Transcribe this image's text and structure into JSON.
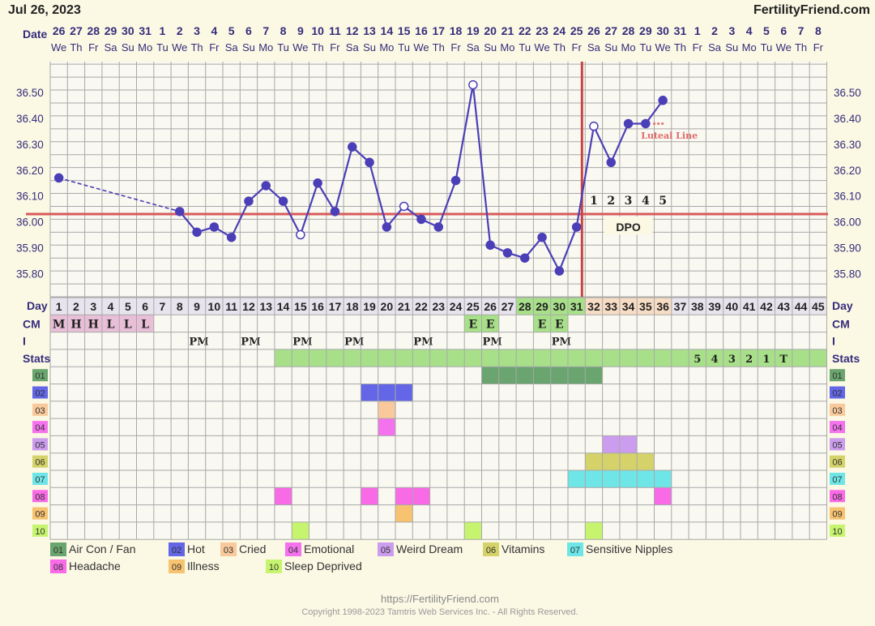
{
  "header": {
    "date": "Jul 26, 2023",
    "brand": "FertilityFriend.com"
  },
  "labels": {
    "date": "Date",
    "day": "Day",
    "cm": "CM",
    "i": "I",
    "stats": "Stats",
    "dpo": "DPO",
    "luteal": "Luteal Line"
  },
  "footer": {
    "url": "https://FertilityFriend.com",
    "copyright": "Copyright 1998-2023 Tamtris Web Services Inc. - All Rights Reserved."
  },
  "colors": {
    "background": "#fbf8e4",
    "chart_bg": "#f9f8f1",
    "grid": "#a8a8a8",
    "line": "#4b3fb7",
    "coverline": "#d85a5a",
    "ovulation": "#c94444",
    "pink": "#e9bfd8",
    "green": "#a8e08a",
    "darkgreen": "#6aa46e"
  },
  "chart_data": {
    "type": "line",
    "ylim": [
      35.71,
      36.62
    ],
    "y_ticks": [
      "36.50",
      "36.40",
      "36.30",
      "36.20",
      "36.10",
      "36.00",
      "35.90",
      "35.80"
    ],
    "dates": [
      "26",
      "27",
      "28",
      "29",
      "30",
      "31",
      "1",
      "2",
      "3",
      "4",
      "5",
      "6",
      "7",
      "8",
      "9",
      "10",
      "11",
      "12",
      "13",
      "14",
      "15",
      "16",
      "17",
      "18",
      "19",
      "20",
      "21",
      "22",
      "23",
      "24",
      "25",
      "26",
      "27",
      "28",
      "29",
      "30",
      "31",
      "1",
      "2",
      "3",
      "4",
      "5",
      "6",
      "7",
      "8"
    ],
    "weekdays": [
      "We",
      "Th",
      "Fr",
      "Sa",
      "Su",
      "Mo",
      "Tu",
      "We",
      "Th",
      "Fr",
      "Sa",
      "Su",
      "Mo",
      "Tu",
      "We",
      "Th",
      "Fr",
      "Sa",
      "Su",
      "Mo",
      "Tu",
      "We",
      "Th",
      "Fr",
      "Sa",
      "Su",
      "Mo",
      "Tu",
      "We",
      "Th",
      "Fr",
      "Sa",
      "Su",
      "Mo",
      "Tu",
      "We",
      "Th",
      "Fr",
      "Sa",
      "Su",
      "Mo",
      "Tu",
      "We",
      "Th",
      "Fr"
    ],
    "days": [
      1,
      2,
      3,
      4,
      5,
      6,
      7,
      8,
      9,
      10,
      11,
      12,
      13,
      14,
      15,
      16,
      17,
      18,
      19,
      20,
      21,
      22,
      23,
      24,
      25,
      26,
      27,
      28,
      29,
      30,
      31,
      32,
      33,
      34,
      35,
      36,
      37,
      38,
      39,
      40,
      41,
      42,
      43,
      44,
      45
    ],
    "temps": [
      {
        "day": 1,
        "temp": 36.17,
        "open": false
      },
      {
        "day": 8,
        "temp": 36.04,
        "open": false
      },
      {
        "day": 9,
        "temp": 35.96,
        "open": false
      },
      {
        "day": 10,
        "temp": 35.98,
        "open": false
      },
      {
        "day": 11,
        "temp": 35.94,
        "open": false
      },
      {
        "day": 12,
        "temp": 36.08,
        "open": false
      },
      {
        "day": 13,
        "temp": 36.14,
        "open": false
      },
      {
        "day": 14,
        "temp": 36.08,
        "open": false
      },
      {
        "day": 15,
        "temp": 35.95,
        "open": true
      },
      {
        "day": 16,
        "temp": 36.15,
        "open": false
      },
      {
        "day": 17,
        "temp": 36.04,
        "open": false
      },
      {
        "day": 18,
        "temp": 36.29,
        "open": false
      },
      {
        "day": 19,
        "temp": 36.23,
        "open": false
      },
      {
        "day": 20,
        "temp": 35.98,
        "open": false
      },
      {
        "day": 21,
        "temp": 36.06,
        "open": true
      },
      {
        "day": 22,
        "temp": 36.01,
        "open": false
      },
      {
        "day": 23,
        "temp": 35.98,
        "open": false
      },
      {
        "day": 24,
        "temp": 36.16,
        "open": false
      },
      {
        "day": 25,
        "temp": 36.53,
        "open": true
      },
      {
        "day": 26,
        "temp": 35.91,
        "open": false
      },
      {
        "day": 27,
        "temp": 35.88,
        "open": false
      },
      {
        "day": 28,
        "temp": 35.86,
        "open": false
      },
      {
        "day": 29,
        "temp": 35.94,
        "open": false
      },
      {
        "day": 30,
        "temp": 35.81,
        "open": false
      },
      {
        "day": 31,
        "temp": 35.98,
        "open": false
      },
      {
        "day": 32,
        "temp": 36.37,
        "open": true
      },
      {
        "day": 33,
        "temp": 36.23,
        "open": false
      },
      {
        "day": 34,
        "temp": 36.38,
        "open": false
      },
      {
        "day": 35,
        "temp": 36.38,
        "open": false
      },
      {
        "day": 36,
        "temp": 36.47,
        "open": false
      }
    ],
    "dashed_segment": [
      1,
      8
    ],
    "coverline": 36.03,
    "ovulation_day": 31,
    "dpo": [
      "1",
      "2",
      "3",
      "4",
      "5"
    ],
    "dpo_start_day": 32,
    "luteal_line_day": 36,
    "cm": [
      {
        "day": 1,
        "text": "M",
        "color": "pink"
      },
      {
        "day": 2,
        "text": "H",
        "color": "pink"
      },
      {
        "day": 3,
        "text": "H",
        "color": "pink"
      },
      {
        "day": 4,
        "text": "L",
        "color": "pink"
      },
      {
        "day": 5,
        "text": "L",
        "color": "pink"
      },
      {
        "day": 6,
        "text": "L",
        "color": "pink"
      },
      {
        "day": 25,
        "text": "E",
        "color": "green"
      },
      {
        "day": 26,
        "text": "E",
        "color": "green"
      },
      {
        "day": 29,
        "text": "E",
        "color": "green"
      },
      {
        "day": 30,
        "text": "E",
        "color": "green"
      }
    ],
    "intercourse": [
      {
        "day": 9,
        "text": "PM"
      },
      {
        "day": 12,
        "text": "PM"
      },
      {
        "day": 15,
        "text": "PM"
      },
      {
        "day": 18,
        "text": "PM"
      },
      {
        "day": 22,
        "text": "PM"
      },
      {
        "day": 26,
        "text": "PM"
      },
      {
        "day": 30,
        "text": "PM"
      }
    ],
    "stats": {
      "fertile_start": 14,
      "fertile_end": 45,
      "countdown": [
        {
          "day": 38,
          "text": "5"
        },
        {
          "day": 39,
          "text": "4"
        },
        {
          "day": 40,
          "text": "3"
        },
        {
          "day": 41,
          "text": "2"
        },
        {
          "day": 42,
          "text": "1"
        },
        {
          "day": 43,
          "text": "T"
        }
      ]
    },
    "symptoms": [
      {
        "id": "01",
        "name": "Air Con / Fan",
        "color": "#6aa46e",
        "days": [
          26,
          27,
          28,
          29,
          30,
          31,
          32
        ]
      },
      {
        "id": "02",
        "name": "Hot",
        "color": "#6366e6",
        "days": [
          19,
          20,
          21
        ]
      },
      {
        "id": "03",
        "name": "Cried",
        "color": "#f9c99b",
        "days": [
          20
        ]
      },
      {
        "id": "04",
        "name": "Emotional",
        "color": "#f572ee",
        "days": [
          20
        ]
      },
      {
        "id": "05",
        "name": "Weird Dream",
        "color": "#cc9cee",
        "days": [
          33,
          34
        ]
      },
      {
        "id": "06",
        "name": "Vitamins",
        "color": "#d5d26a",
        "days": [
          32,
          33,
          34,
          35
        ]
      },
      {
        "id": "07",
        "name": "Sensitive Nipples",
        "color": "#6ee6e8",
        "days": [
          31,
          32,
          33,
          34,
          35,
          36
        ]
      },
      {
        "id": "08",
        "name": "Headache",
        "color": "#f86ae6",
        "days": [
          14,
          19,
          21,
          22,
          36
        ]
      },
      {
        "id": "09",
        "name": "Illness",
        "color": "#f8c370",
        "days": [
          21
        ]
      },
      {
        "id": "10",
        "name": "Sleep Deprived",
        "color": "#c6f46e",
        "days": [
          15,
          25,
          32
        ]
      }
    ]
  }
}
